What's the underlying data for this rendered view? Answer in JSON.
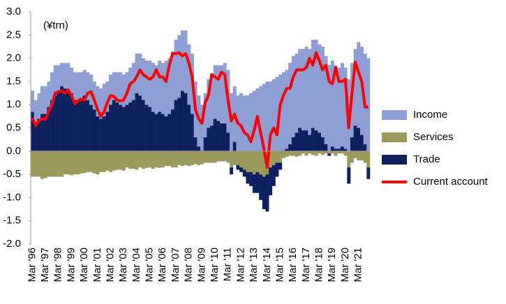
{
  "chart_data": {
    "type": "stacked-bar-line",
    "y_label": "(¥trn)",
    "categories": [
      "Mar '96",
      null,
      null,
      null,
      "Mar '97",
      null,
      null,
      null,
      "Mar '98",
      null,
      null,
      null,
      "Mar '99",
      null,
      null,
      null,
      "Mar '00",
      null,
      null,
      null,
      "Mar '01",
      null,
      null,
      null,
      "Mar '02",
      null,
      null,
      null,
      "Mar '03",
      null,
      null,
      null,
      "Mar '04",
      null,
      null,
      null,
      "Mar '05",
      null,
      null,
      null,
      "Mar '06",
      null,
      null,
      null,
      "Mar '07",
      null,
      null,
      null,
      "Mar '08",
      null,
      null,
      null,
      "Mar '09",
      null,
      null,
      null,
      "Mar '10",
      null,
      null,
      null,
      "Mar '11",
      null,
      null,
      null,
      "Mar '12",
      null,
      null,
      null,
      "Mar '13",
      null,
      null,
      null,
      "Mar '14",
      null,
      null,
      null,
      "Mar '15",
      null,
      null,
      null,
      "Mar '16",
      null,
      null,
      null,
      "Mar '17",
      null,
      null,
      null,
      "Mar '18",
      null,
      null,
      null,
      "Mar '19",
      null,
      null,
      null,
      "Mar '20",
      null,
      null,
      null,
      "Mar '21",
      null,
      null,
      null
    ],
    "series": [
      {
        "name": "Income",
        "color": "#8e9fd6",
        "kind": "bar",
        "values": [
          0.45,
          0.5,
          0.55,
          0.6,
          0.6,
          0.55,
          0.6,
          0.65,
          0.55,
          0.5,
          0.55,
          0.6,
          0.55,
          0.6,
          0.6,
          0.55,
          0.55,
          0.6,
          0.65,
          0.6,
          0.65,
          0.65,
          0.7,
          0.65,
          0.65,
          0.6,
          0.65,
          0.7,
          0.7,
          0.7,
          0.75,
          0.8,
          0.85,
          0.9,
          0.9,
          0.95,
          1.0,
          1.05,
          1.05,
          1.1,
          1.1,
          1.2,
          1.2,
          1.25,
          1.3,
          1.35,
          1.3,
          1.35,
          1.3,
          1.3,
          1.2,
          1.1,
          1.0,
          0.95,
          1.05,
          1.1,
          1.15,
          1.2,
          1.25,
          1.3,
          1.35,
          1.25,
          1.2,
          1.2,
          1.25,
          1.2,
          1.2,
          1.25,
          1.3,
          1.35,
          1.4,
          1.45,
          1.5,
          1.5,
          1.55,
          1.6,
          1.65,
          1.7,
          1.7,
          1.75,
          1.75,
          1.7,
          1.7,
          1.75,
          1.8,
          1.85,
          1.9,
          1.95,
          1.9,
          1.95,
          1.9,
          1.85,
          1.85,
          1.8,
          1.75,
          1.8,
          1.75,
          1.55,
          1.6,
          1.65,
          1.85,
          1.9,
          1.95,
          2.0
        ]
      },
      {
        "name": "Services",
        "color": "#9c9a5a",
        "kind": "bar",
        "values": [
          -0.55,
          -0.55,
          -0.55,
          -0.6,
          -0.58,
          -0.55,
          -0.55,
          -0.55,
          -0.55,
          -0.55,
          -0.5,
          -0.5,
          -0.52,
          -0.5,
          -0.5,
          -0.48,
          -0.47,
          -0.45,
          -0.45,
          -0.48,
          -0.5,
          -0.45,
          -0.45,
          -0.42,
          -0.45,
          -0.42,
          -0.4,
          -0.4,
          -0.42,
          -0.35,
          -0.38,
          -0.38,
          -0.4,
          -0.35,
          -0.38,
          -0.36,
          -0.35,
          -0.38,
          -0.35,
          -0.36,
          -0.35,
          -0.32,
          -0.32,
          -0.35,
          -0.35,
          -0.3,
          -0.32,
          -0.3,
          -0.32,
          -0.3,
          -0.28,
          -0.3,
          -0.28,
          -0.25,
          -0.25,
          -0.25,
          -0.25,
          -0.22,
          -0.22,
          -0.22,
          -0.25,
          -0.35,
          -0.3,
          -0.3,
          -0.35,
          -0.4,
          -0.45,
          -0.45,
          -0.5,
          -0.45,
          -0.5,
          -0.55,
          -0.5,
          -0.35,
          -0.3,
          -0.25,
          -0.25,
          -0.15,
          -0.12,
          -0.1,
          -0.1,
          -0.12,
          -0.1,
          -0.05,
          -0.1,
          -0.05,
          -0.08,
          -0.1,
          -0.05,
          -0.08,
          -0.05,
          -0.05,
          -0.05,
          -0.1,
          -0.05,
          -0.05,
          -0.1,
          -0.35,
          -0.25,
          -0.15,
          -0.2,
          -0.2,
          -0.25,
          -0.35
        ]
      },
      {
        "name": "Trade",
        "color": "#0d2060",
        "kind": "bar",
        "values": [
          0.85,
          0.6,
          0.7,
          0.8,
          0.8,
          0.95,
          1.1,
          1.2,
          1.3,
          1.4,
          1.35,
          1.3,
          1.25,
          1.1,
          1.1,
          1.15,
          1.2,
          1.1,
          1.0,
          0.9,
          0.75,
          0.7,
          0.75,
          0.85,
          1.0,
          1.1,
          1.05,
          1.0,
          0.95,
          1.0,
          1.05,
          1.1,
          1.25,
          1.2,
          1.1,
          1.0,
          0.95,
          0.85,
          0.8,
          0.85,
          0.8,
          0.75,
          0.8,
          0.9,
          1.1,
          1.15,
          1.3,
          1.25,
          1.0,
          0.8,
          0.3,
          0.1,
          0.0,
          0.3,
          0.5,
          0.55,
          0.7,
          0.65,
          0.6,
          0.6,
          0.4,
          -0.15,
          0.2,
          -0.1,
          -0.1,
          -0.15,
          -0.25,
          -0.3,
          -0.4,
          -0.45,
          -0.55,
          -0.7,
          -0.8,
          -0.6,
          -0.45,
          -0.3,
          -0.15,
          0.0,
          0.05,
          0.15,
          0.3,
          0.4,
          0.5,
          0.45,
          0.45,
          0.35,
          0.5,
          0.45,
          0.4,
          0.3,
          0.15,
          -0.05,
          0.1,
          0.05,
          0.05,
          0.1,
          0.05,
          -0.35,
          0.3,
          0.55,
          0.5,
          0.35,
          0.15,
          -0.25
        ]
      },
      {
        "name": "Current account",
        "color": "#ff0000",
        "kind": "line",
        "values": [
          0.72,
          0.55,
          0.65,
          0.7,
          0.68,
          0.85,
          1.0,
          1.25,
          1.28,
          1.3,
          1.25,
          1.32,
          1.2,
          1.02,
          1.08,
          1.12,
          1.1,
          1.25,
          1.28,
          1.1,
          0.9,
          0.75,
          0.85,
          1.05,
          1.2,
          1.18,
          1.1,
          1.08,
          1.1,
          1.25,
          1.45,
          1.5,
          1.6,
          1.75,
          1.65,
          1.6,
          1.55,
          1.6,
          1.75,
          1.6,
          1.6,
          1.5,
          1.85,
          2.1,
          2.1,
          2.12,
          2.05,
          2.1,
          1.9,
          1.6,
          0.9,
          0.7,
          0.6,
          1.05,
          1.2,
          1.65,
          1.6,
          1.55,
          1.7,
          1.65,
          1.1,
          0.65,
          0.8,
          0.6,
          0.55,
          0.4,
          0.35,
          0.2,
          0.45,
          0.75,
          0.4,
          0.05,
          -0.35,
          0.35,
          0.5,
          0.35,
          1.0,
          1.2,
          1.35,
          1.35,
          1.6,
          1.75,
          1.75,
          1.75,
          1.8,
          2.0,
          1.85,
          2.12,
          1.95,
          1.75,
          1.85,
          1.5,
          1.45,
          1.8,
          1.5,
          1.5,
          1.55,
          0.5,
          1.25,
          1.92,
          1.7,
          1.5,
          0.95,
          0.95
        ]
      }
    ],
    "ylim": [
      -2,
      3
    ],
    "yticks": [
      {
        "value": -2,
        "label": "-2.0"
      },
      {
        "value": -1.5,
        "label": "-1.5"
      },
      {
        "value": -1,
        "label": "-1.0"
      },
      -0.5,
      {
        "value": 0,
        "label": "0.0"
      },
      0.5,
      {
        "value": 1,
        "label": "1.0"
      },
      1.5,
      {
        "value": 2,
        "label": "2.0"
      },
      2.5,
      {
        "value": 3,
        "label": "3.0"
      }
    ],
    "legend": "right"
  }
}
